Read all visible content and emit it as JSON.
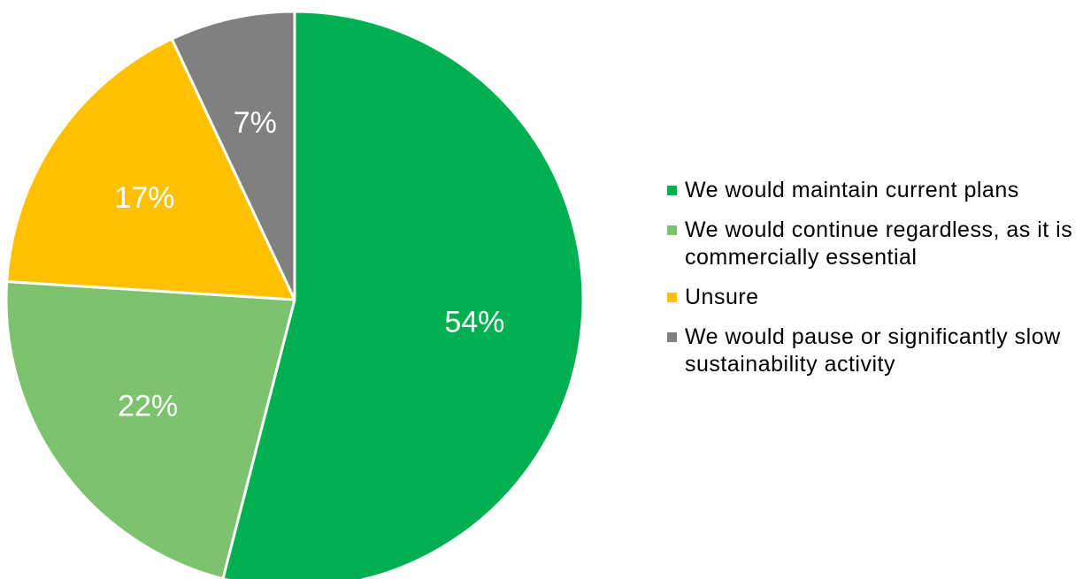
{
  "chart_data": {
    "type": "pie",
    "title": "",
    "slices": [
      {
        "name": "We would maintain current plans",
        "value": 54,
        "label": "54%",
        "color": "#00B050"
      },
      {
        "name": "We would continue regardless, as it is commercially essential",
        "value": 22,
        "label": "22%",
        "color": "#7DC26E"
      },
      {
        "name": "Unsure",
        "value": 17,
        "label": "17%",
        "color": "#FFC000"
      },
      {
        "name": "We would pause or significantly slow sustainability activity",
        "value": 7,
        "label": "7%",
        "color": "#808080"
      }
    ],
    "start_direction": "top",
    "direction": "clockwise",
    "legend_position": "right"
  }
}
